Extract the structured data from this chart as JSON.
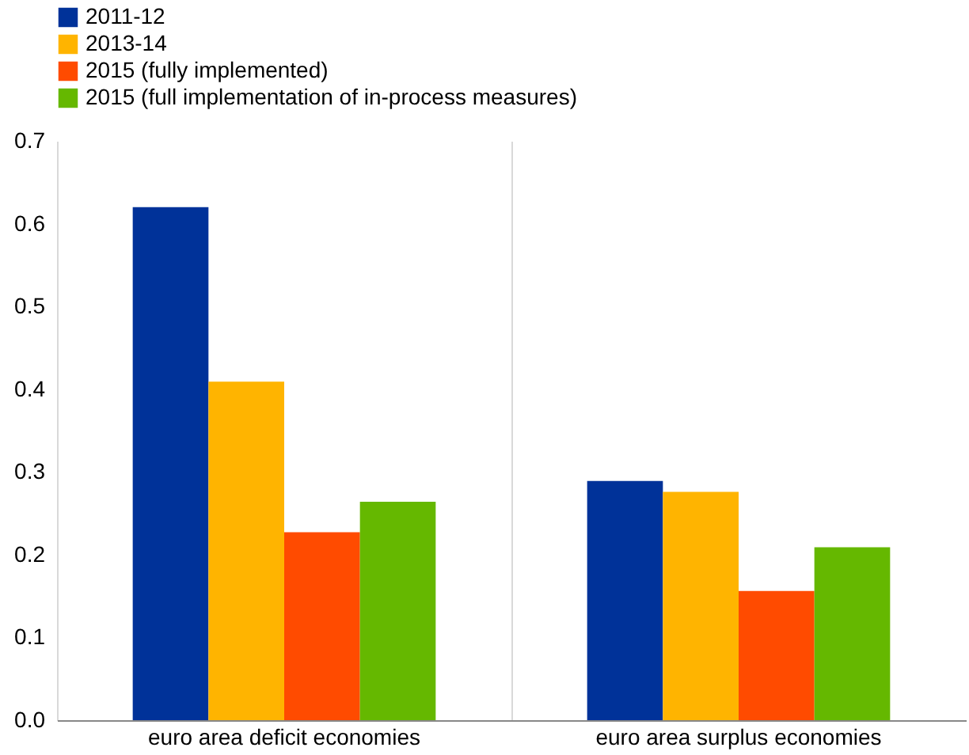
{
  "chart_data": {
    "type": "bar",
    "categories": [
      "euro area deficit economies",
      "euro area surplus economies"
    ],
    "series": [
      {
        "name": "2011-12",
        "color": "#003299",
        "values": [
          0.62,
          0.289
        ]
      },
      {
        "name": "2013-14",
        "color": "#ffb400",
        "values": [
          0.409,
          0.276
        ]
      },
      {
        "name": "2015 (fully implemented)",
        "color": "#ff4b00",
        "values": [
          0.227,
          0.156
        ]
      },
      {
        "name": "2015 (full implementation of in-process measures)",
        "color": "#65b800",
        "values": [
          0.264,
          0.209
        ]
      }
    ],
    "ylim": [
      0,
      0.7
    ],
    "yticks": [
      {
        "value": 0,
        "label": "0.0"
      },
      0.1,
      0.2,
      0.3,
      0.4,
      0.5,
      0.6,
      0.7
    ],
    "grid": "x",
    "legend": "top left"
  }
}
